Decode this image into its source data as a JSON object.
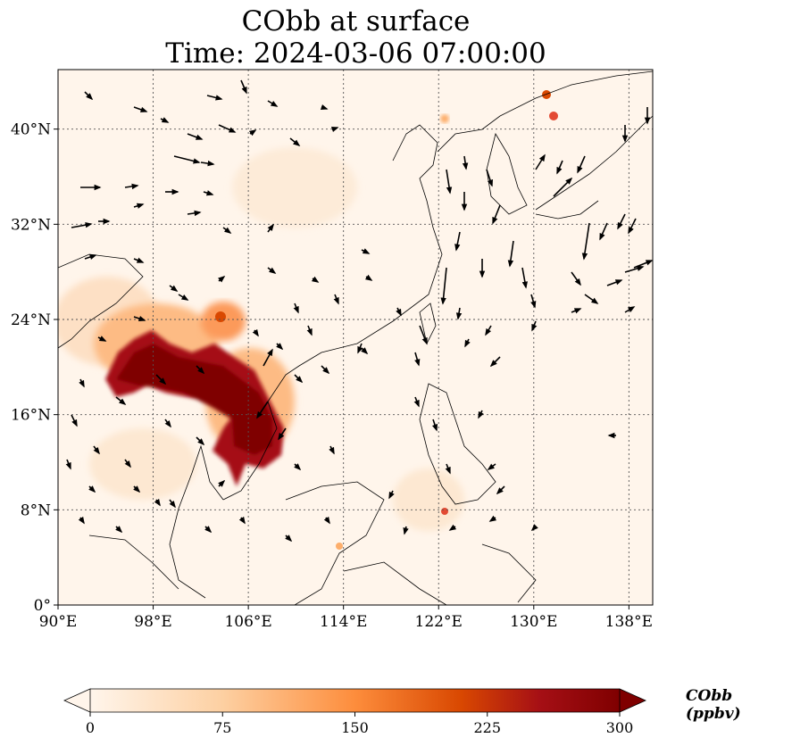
{
  "title_line1": "CObb at surface",
  "title_line2": "Time: 2024-03-06 07:00:00",
  "map": {
    "lon_range": [
      90,
      140
    ],
    "lat_range": [
      0,
      45
    ],
    "lon_ticks": [
      {
        "value": 90,
        "label": "90°E"
      },
      {
        "value": 98,
        "label": "98°E"
      },
      {
        "value": 106,
        "label": "106°E"
      },
      {
        "value": 114,
        "label": "114°E"
      },
      {
        "value": 122,
        "label": "122°E"
      },
      {
        "value": 130,
        "label": "130°E"
      },
      {
        "value": 138,
        "label": "138°E"
      }
    ],
    "lat_ticks": [
      {
        "value": 0,
        "label": "0°"
      },
      {
        "value": 8,
        "label": "8°N"
      },
      {
        "value": 16,
        "label": "16°N"
      },
      {
        "value": 24,
        "label": "24°N"
      },
      {
        "value": 32,
        "label": "32°N"
      },
      {
        "value": 40,
        "label": "40°N"
      }
    ],
    "gridlines": true,
    "background_color": "#fff5eb"
  },
  "colorbar": {
    "label": "CObb (ppbv)",
    "min": 0,
    "max": 300,
    "ticks": [
      {
        "value": 0,
        "label": "0"
      },
      {
        "value": 75,
        "label": "75"
      },
      {
        "value": 150,
        "label": "150"
      },
      {
        "value": 225,
        "label": "225"
      },
      {
        "value": 300,
        "label": "300"
      }
    ],
    "colors": [
      "#fff5eb",
      "#fdd0a2",
      "#fd8d3c",
      "#d94801",
      "#a50f15",
      "#7f0000"
    ]
  }
}
